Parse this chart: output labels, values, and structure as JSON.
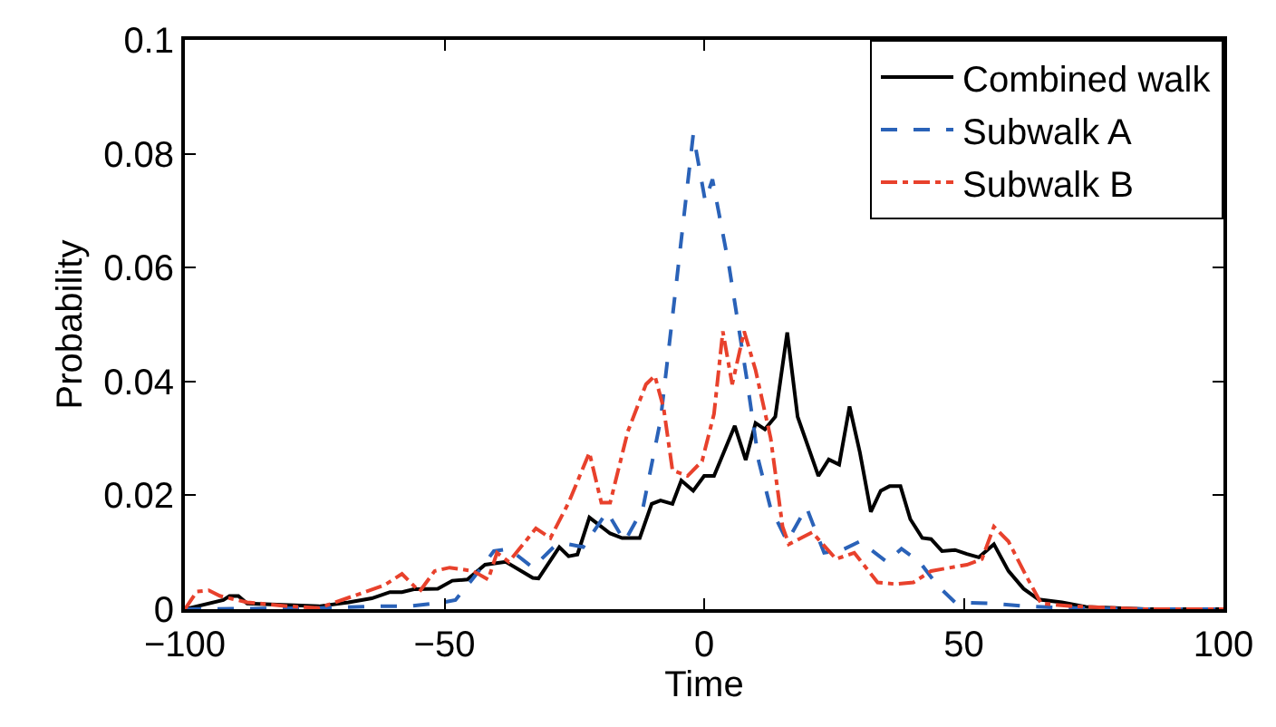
{
  "chart_data": {
    "type": "line",
    "xlabel": "Time",
    "ylabel": "Probability",
    "xlim": [
      -100,
      100
    ],
    "ylim": [
      0,
      0.1
    ],
    "xticks": [
      {
        "value": -100,
        "label": "−100"
      },
      {
        "value": -50,
        "label": "−50"
      },
      0,
      50,
      100
    ],
    "yticks": [
      0,
      0.02,
      0.04,
      0.06,
      0.08,
      0.1
    ],
    "legend": "top right",
    "marker": "none",
    "series": [
      {
        "name": "Combined walk",
        "color": "#000000",
        "line_style": "solid",
        "x": [
          -100,
          -92.6,
          -91.4,
          -89.7,
          -88,
          -82.2,
          -74.2,
          -68.5,
          -64,
          -60.5,
          -58.2,
          -55.9,
          -51.3,
          -48.5,
          -45.6,
          -42.2,
          -38.2,
          -33,
          -31.9,
          -27.9,
          -26.1,
          -24.4,
          -22.1,
          -18.1,
          -15.8,
          -12.4,
          -10.1,
          -8.4,
          -6.1,
          -4.4,
          -2.1,
          0,
          1.9,
          5.9,
          8,
          9.9,
          11.7,
          13.7,
          16,
          18,
          22,
          24,
          26,
          28,
          30,
          32.1,
          34,
          35.7,
          37.8,
          39.7,
          42,
          43.7,
          45.8,
          48.3,
          50.6,
          52.9,
          55.8,
          58.6,
          61.5,
          64.4,
          68.9,
          73.5,
          85,
          100
        ],
        "values": [
          0,
          0.0016,
          0.0023,
          0.0023,
          0.001,
          0.0008,
          0.0005,
          0.0012,
          0.0019,
          0.003,
          0.003,
          0.0035,
          0.0036,
          0.005,
          0.0052,
          0.0078,
          0.0083,
          0.0055,
          0.0054,
          0.0109,
          0.0093,
          0.0096,
          0.0161,
          0.0133,
          0.0125,
          0.0125,
          0.0185,
          0.0191,
          0.0185,
          0.0226,
          0.0208,
          0.0234,
          0.0234,
          0.0322,
          0.0262,
          0.0327,
          0.0316,
          0.0338,
          0.0486,
          0.0338,
          0.0234,
          0.0263,
          0.0254,
          0.0356,
          0.0275,
          0.0171,
          0.0208,
          0.0216,
          0.0216,
          0.0158,
          0.0125,
          0.0123,
          0.0102,
          0.0104,
          0.0097,
          0.0091,
          0.0114,
          0.0067,
          0.0036,
          0.0017,
          0.0012,
          0.0004,
          0,
          0
        ]
      },
      {
        "name": "Subwalk A",
        "color": "#2a62b8",
        "line_style": "dashed",
        "x": [
          -100,
          -74.2,
          -64,
          -57,
          -50.2,
          -47.9,
          -44.5,
          -40.5,
          -37.6,
          -33,
          -29,
          -26.1,
          -23.3,
          -18.7,
          -15.3,
          -11.8,
          -8.4,
          -5.5,
          -2.1,
          0.2,
          1.6,
          4.8,
          8.2,
          10.5,
          12.8,
          14,
          16,
          19.7,
          23.1,
          26.6,
          30,
          35.2,
          38,
          41.5,
          44.9,
          48.3,
          55.2,
          62,
          71.2,
          85,
          100
        ],
        "values": [
          0,
          0.0002,
          0.0005,
          0.0005,
          0.0012,
          0.0016,
          0.0054,
          0.0102,
          0.0106,
          0.0073,
          0.0109,
          0.0114,
          0.0109,
          0.0171,
          0.0119,
          0.0177,
          0.0332,
          0.0561,
          0.0834,
          0.0717,
          0.0755,
          0.0602,
          0.0405,
          0.026,
          0.0177,
          0.0156,
          0.0119,
          0.0179,
          0.0099,
          0.0104,
          0.0119,
          0.0083,
          0.0106,
          0.0083,
          0.0042,
          0.0012,
          0.001,
          0.0005,
          0.0002,
          0,
          0
        ]
      },
      {
        "name": "Subwalk B",
        "color": "#e8412c",
        "line_style": "dashdot",
        "x": [
          -100,
          -97.7,
          -95.4,
          -93.2,
          -88,
          -83.4,
          -80,
          -74.2,
          -61.6,
          -58.2,
          -54.8,
          -51.9,
          -49,
          -44.5,
          -41.6,
          -39.9,
          -37.6,
          -32.4,
          -29.6,
          -26.1,
          -22.1,
          -19.8,
          -18.1,
          -14.7,
          -11.2,
          -9.5,
          -7.8,
          -6.1,
          -3.2,
          -0.4,
          1.9,
          3.6,
          5.4,
          7.7,
          9.9,
          12.8,
          15.1,
          16.3,
          20.8,
          25.4,
          28.9,
          33.4,
          36.9,
          40.3,
          43.7,
          50.6,
          53.5,
          55.8,
          58.6,
          62.1,
          64.9,
          71.2,
          85,
          100
        ],
        "values": [
          0,
          0.0031,
          0.0033,
          0.0023,
          0.0012,
          0.0008,
          0.0005,
          0.0002,
          0.0042,
          0.0062,
          0.0031,
          0.0067,
          0.0073,
          0.0067,
          0.0052,
          0.0099,
          0.0083,
          0.0142,
          0.0125,
          0.0187,
          0.0275,
          0.0187,
          0.0187,
          0.0312,
          0.0395,
          0.041,
          0.0353,
          0.0244,
          0.0234,
          0.026,
          0.0343,
          0.0488,
          0.0395,
          0.0488,
          0.042,
          0.0301,
          0.0145,
          0.0114,
          0.0135,
          0.0088,
          0.0099,
          0.0047,
          0.0044,
          0.0047,
          0.0067,
          0.0078,
          0.0088,
          0.0145,
          0.0119,
          0.0057,
          0.001,
          0.0005,
          0,
          0
        ]
      }
    ]
  }
}
